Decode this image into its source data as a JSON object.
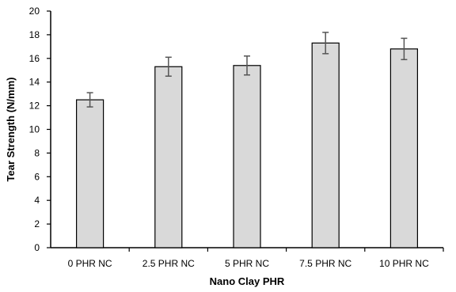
{
  "chart_data": {
    "type": "bar",
    "title": "",
    "xlabel": "Nano Clay PHR",
    "ylabel": "Tear Strength (N/mm)",
    "categories": [
      "0 PHR NC",
      "2.5 PHR NC",
      "5 PHR NC",
      "7.5 PHR NC",
      "10 PHR NC"
    ],
    "values": [
      12.5,
      15.3,
      15.4,
      17.3,
      16.8
    ],
    "errors": [
      0.6,
      0.8,
      0.8,
      0.9,
      0.9
    ],
    "ylim": [
      0,
      20
    ],
    "yticks": [
      "0",
      "2",
      "4",
      "6",
      "8",
      "10",
      "12",
      "14",
      "16",
      "18",
      "20"
    ],
    "grid": false,
    "legend": "none",
    "colors": {
      "bar_fill": "#d9d9d9",
      "bar_stroke": "#000000",
      "error_bar": "#555555",
      "axis": "#000000"
    }
  }
}
